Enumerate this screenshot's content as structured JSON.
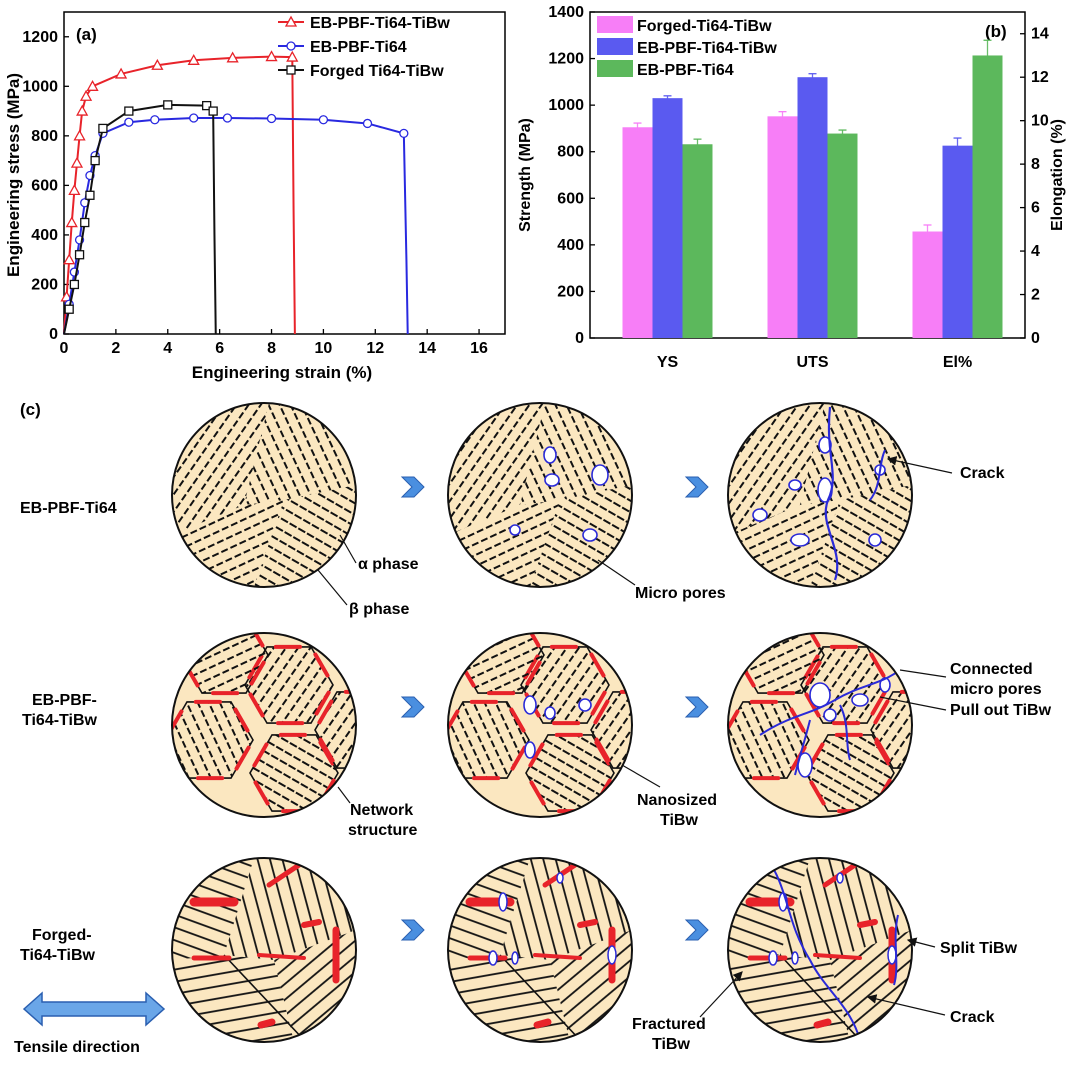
{
  "figure": {
    "panel_a_label": "(a)",
    "panel_b_label": "(b)",
    "panel_c_label": "(c)"
  },
  "chart_data": [
    {
      "type": "line",
      "panel": "(a)",
      "title": "",
      "xlabel": "Engineering strain (%)",
      "ylabel": "Engineering stress (MPa)",
      "xlim": [
        0,
        17
      ],
      "ylim": [
        0,
        1300
      ],
      "xticks": [
        "0",
        "2",
        "4",
        "6",
        "8",
        "10",
        "12",
        "14",
        "16"
      ],
      "yticks": [
        "0",
        "200",
        "400",
        "600",
        "800",
        "1000",
        "1200"
      ],
      "legend_placement": "top-right",
      "series": [
        {
          "name": "EB-PBF-Ti64-TiBw",
          "color": "#e8232a",
          "marker": "triangle",
          "x": [
            0,
            0.1,
            0.2,
            0.3,
            0.4,
            0.5,
            0.6,
            0.7,
            0.85,
            1.1,
            2.2,
            3.6,
            5.0,
            6.5,
            8.0,
            8.8,
            8.85,
            8.9
          ],
          "y": [
            0,
            150,
            300,
            450,
            580,
            690,
            800,
            900,
            960,
            1000,
            1050,
            1085,
            1105,
            1115,
            1120,
            1118,
            500,
            0
          ]
        },
        {
          "name": "EB-PBF-Ti64",
          "color": "#2929e0",
          "marker": "circle",
          "x": [
            0,
            0.2,
            0.4,
            0.6,
            0.8,
            1.0,
            1.2,
            1.5,
            2.5,
            3.5,
            5,
            6.3,
            8,
            10,
            11.7,
            13.1,
            13.2,
            13.25
          ],
          "y": [
            0,
            120,
            250,
            380,
            530,
            640,
            720,
            810,
            855,
            865,
            872,
            872,
            870,
            865,
            850,
            810,
            300,
            0
          ]
        },
        {
          "name": "Forged Ti64-TiBw",
          "color": "#111111",
          "marker": "square",
          "x": [
            0,
            0.2,
            0.4,
            0.6,
            0.8,
            1.0,
            1.2,
            1.5,
            2.5,
            4,
            5.5,
            5.75,
            5.8,
            5.85
          ],
          "y": [
            0,
            100,
            200,
            320,
            450,
            560,
            700,
            830,
            900,
            925,
            922,
            900,
            400,
            0
          ]
        }
      ]
    },
    {
      "type": "bar",
      "panel": "(b)",
      "title": "",
      "categories": [
        "YS",
        "UTS",
        "El%"
      ],
      "ylabel": "Strength (MPa)",
      "y2label": "Elongation (%)",
      "ylim": [
        0,
        1400
      ],
      "y2lim": [
        0,
        15
      ],
      "yticks": [
        "0",
        "200",
        "400",
        "600",
        "800",
        "1000",
        "1200",
        "1400"
      ],
      "y2ticks": [
        "0",
        "2",
        "4",
        "6",
        "8",
        "10",
        "12",
        "14"
      ],
      "legend_placement": "top-left",
      "series": [
        {
          "name": "Forged-Ti64-TiBw",
          "color": "#f77ef7",
          "values": [
            905,
            952,
            4.9
          ],
          "errors": [
            18,
            20,
            0.3
          ]
        },
        {
          "name": "EB-PBF-Ti64-TiBw",
          "color": "#5a5af0",
          "values": [
            1030,
            1120,
            8.85
          ],
          "errors": [
            10,
            15,
            0.35
          ]
        },
        {
          "name": "EB-PBF-Ti64",
          "color": "#5cb85c",
          "values": [
            832,
            878,
            13.0
          ],
          "errors": [
            22,
            15,
            0.7
          ]
        }
      ]
    }
  ],
  "schematic": {
    "rows": [
      {
        "label": "EB-PBF-Ti64"
      },
      {
        "label": "EB-PBF-\nTi64-TiBw"
      },
      {
        "label": "Forged-\nTi64-TiBw"
      }
    ],
    "annotations": {
      "alpha_phase": "α phase",
      "beta_phase": "β phase",
      "micro_pores": "Micro pores",
      "crack_1": "Crack",
      "network_structure": "Network\nstructure",
      "nanosized_tibw": "Nanosized\nTiBw",
      "connected_pores": "Connected\nmicro pores",
      "pull_out": "Pull out TiBw",
      "split_tibw": "Split TiBw",
      "fractured_tibw": "Fractured\nTiBw",
      "crack_2": "Crack",
      "tensile_direction": "Tensile direction"
    },
    "colors": {
      "grain_fill": "#fbe7c0",
      "lath": "#111111",
      "tibw": "#e8232a",
      "crack": "#2a2ad8",
      "pore_fill": "#ffffff",
      "arrow": "#4a8fe0"
    }
  }
}
